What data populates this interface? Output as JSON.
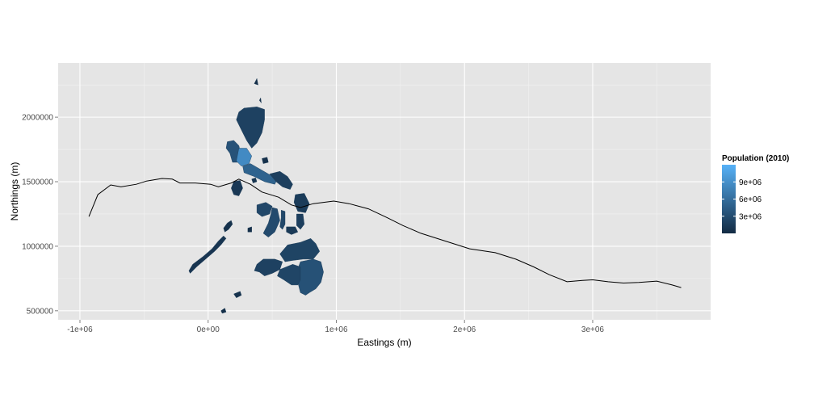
{
  "chart_data": {
    "type": "map",
    "title": "",
    "xlabel": "Eastings (m)",
    "ylabel": "Northings (m)",
    "xlim": [
      -1170000,
      3920000
    ],
    "ylim": [
      430000,
      2420000
    ],
    "grid": true,
    "x_ticks": [
      {
        "value": -1000000,
        "label": "-1e+06"
      },
      {
        "value": 0,
        "label": "0e+00"
      },
      {
        "value": 1000000,
        "label": "1e+06"
      },
      {
        "value": 2000000,
        "label": "2e+06"
      },
      {
        "value": 3000000,
        "label": "3e+06"
      }
    ],
    "y_ticks": [
      {
        "value": 500000,
        "label": "500000"
      },
      {
        "value": 1000000,
        "label": "1000000"
      },
      {
        "value": 1500000,
        "label": "1500000"
      },
      {
        "value": 2000000,
        "label": "2000000"
      }
    ],
    "line": {
      "color": "#000000",
      "points": [
        [
          -930000,
          1230000
        ],
        [
          -860000,
          1400000
        ],
        [
          -760000,
          1475000
        ],
        [
          -680000,
          1460000
        ],
        [
          -560000,
          1480000
        ],
        [
          -480000,
          1505000
        ],
        [
          -360000,
          1525000
        ],
        [
          -280000,
          1520000
        ],
        [
          -220000,
          1490000
        ],
        [
          -100000,
          1490000
        ],
        [
          20000,
          1480000
        ],
        [
          80000,
          1460000
        ],
        [
          180000,
          1490000
        ],
        [
          240000,
          1520000
        ],
        [
          330000,
          1480000
        ],
        [
          420000,
          1420000
        ],
        [
          550000,
          1380000
        ],
        [
          650000,
          1320000
        ],
        [
          720000,
          1300000
        ],
        [
          820000,
          1330000
        ],
        [
          980000,
          1350000
        ],
        [
          1100000,
          1330000
        ],
        [
          1250000,
          1290000
        ],
        [
          1400000,
          1220000
        ],
        [
          1520000,
          1160000
        ],
        [
          1660000,
          1100000
        ],
        [
          1850000,
          1040000
        ],
        [
          2040000,
          980000
        ],
        [
          2240000,
          950000
        ],
        [
          2400000,
          900000
        ],
        [
          2540000,
          840000
        ],
        [
          2660000,
          780000
        ],
        [
          2800000,
          725000
        ],
        [
          2920000,
          735000
        ],
        [
          3000000,
          740000
        ],
        [
          3120000,
          725000
        ],
        [
          3240000,
          715000
        ],
        [
          3360000,
          720000
        ],
        [
          3500000,
          730000
        ],
        [
          3620000,
          700000
        ],
        [
          3690000,
          680000
        ]
      ]
    },
    "regions": [
      {
        "id": "luzon-north",
        "pop": 2000000,
        "points": [
          [
            240000,
            2040000
          ],
          [
            280000,
            2070000
          ],
          [
            380000,
            2080000
          ],
          [
            440000,
            2060000
          ],
          [
            440000,
            1980000
          ],
          [
            420000,
            1880000
          ],
          [
            380000,
            1800000
          ],
          [
            340000,
            1760000
          ],
          [
            300000,
            1820000
          ],
          [
            260000,
            1900000
          ],
          [
            220000,
            1980000
          ]
        ]
      },
      {
        "id": "ilocos",
        "pop": 3500000,
        "points": [
          [
            150000,
            1810000
          ],
          [
            200000,
            1820000
          ],
          [
            240000,
            1780000
          ],
          [
            260000,
            1700000
          ],
          [
            230000,
            1650000
          ],
          [
            190000,
            1650000
          ],
          [
            170000,
            1720000
          ],
          [
            140000,
            1760000
          ]
        ]
      },
      {
        "id": "central-luzon",
        "pop": 8500000,
        "points": [
          [
            240000,
            1760000
          ],
          [
            300000,
            1760000
          ],
          [
            340000,
            1700000
          ],
          [
            320000,
            1640000
          ],
          [
            260000,
            1620000
          ],
          [
            220000,
            1660000
          ]
        ]
      },
      {
        "id": "calabarzon",
        "pop": 5000000,
        "points": [
          [
            270000,
            1620000
          ],
          [
            330000,
            1640000
          ],
          [
            400000,
            1600000
          ],
          [
            470000,
            1560000
          ],
          [
            540000,
            1520000
          ],
          [
            520000,
            1480000
          ],
          [
            440000,
            1500000
          ],
          [
            360000,
            1540000
          ],
          [
            280000,
            1570000
          ]
        ]
      },
      {
        "id": "bicol",
        "pop": 1800000,
        "points": [
          [
            480000,
            1560000
          ],
          [
            560000,
            1580000
          ],
          [
            620000,
            1540000
          ],
          [
            660000,
            1480000
          ],
          [
            640000,
            1440000
          ],
          [
            580000,
            1460000
          ],
          [
            530000,
            1500000
          ]
        ]
      },
      {
        "id": "mindoro",
        "pop": 1200000,
        "points": [
          [
            200000,
            1500000
          ],
          [
            250000,
            1510000
          ],
          [
            270000,
            1450000
          ],
          [
            240000,
            1390000
          ],
          [
            200000,
            1400000
          ],
          [
            180000,
            1450000
          ]
        ]
      },
      {
        "id": "palawan-a",
        "pop": 900000,
        "points": [
          [
            -150000,
            810000
          ],
          [
            -120000,
            860000
          ],
          [
            -40000,
            920000
          ],
          [
            30000,
            980000
          ],
          [
            80000,
            1040000
          ],
          [
            120000,
            1080000
          ],
          [
            140000,
            1060000
          ],
          [
            100000,
            1010000
          ],
          [
            50000,
            960000
          ],
          [
            -20000,
            900000
          ],
          [
            -90000,
            840000
          ],
          [
            -140000,
            790000
          ]
        ]
      },
      {
        "id": "palawan-b",
        "pop": 600000,
        "points": [
          [
            120000,
            1140000
          ],
          [
            150000,
            1180000
          ],
          [
            180000,
            1200000
          ],
          [
            190000,
            1170000
          ],
          [
            160000,
            1130000
          ],
          [
            130000,
            1110000
          ]
        ]
      },
      {
        "id": "panay",
        "pop": 2500000,
        "points": [
          [
            380000,
            1320000
          ],
          [
            450000,
            1340000
          ],
          [
            500000,
            1310000
          ],
          [
            480000,
            1250000
          ],
          [
            420000,
            1230000
          ],
          [
            380000,
            1260000
          ]
        ]
      },
      {
        "id": "negros",
        "pop": 2800000,
        "points": [
          [
            500000,
            1300000
          ],
          [
            540000,
            1290000
          ],
          [
            560000,
            1200000
          ],
          [
            520000,
            1110000
          ],
          [
            470000,
            1070000
          ],
          [
            430000,
            1100000
          ],
          [
            470000,
            1180000
          ],
          [
            490000,
            1250000
          ]
        ]
      },
      {
        "id": "cebu",
        "pop": 2600000,
        "points": [
          [
            570000,
            1280000
          ],
          [
            600000,
            1270000
          ],
          [
            600000,
            1170000
          ],
          [
            580000,
            1130000
          ],
          [
            560000,
            1150000
          ],
          [
            570000,
            1220000
          ]
        ]
      },
      {
        "id": "bohol",
        "pop": 1300000,
        "points": [
          [
            610000,
            1150000
          ],
          [
            680000,
            1150000
          ],
          [
            700000,
            1110000
          ],
          [
            650000,
            1090000
          ],
          [
            610000,
            1110000
          ]
        ]
      },
      {
        "id": "samar",
        "pop": 1500000,
        "points": [
          [
            680000,
            1400000
          ],
          [
            750000,
            1410000
          ],
          [
            790000,
            1330000
          ],
          [
            760000,
            1260000
          ],
          [
            700000,
            1270000
          ],
          [
            670000,
            1340000
          ]
        ]
      },
      {
        "id": "leyte",
        "pop": 1700000,
        "points": [
          [
            690000,
            1250000
          ],
          [
            740000,
            1250000
          ],
          [
            750000,
            1170000
          ],
          [
            720000,
            1130000
          ],
          [
            690000,
            1160000
          ]
        ]
      },
      {
        "id": "mindanao-north",
        "pop": 2200000,
        "points": [
          [
            560000,
            940000
          ],
          [
            620000,
            1010000
          ],
          [
            720000,
            1030000
          ],
          [
            800000,
            1060000
          ],
          [
            840000,
            1020000
          ],
          [
            870000,
            960000
          ],
          [
            820000,
            900000
          ],
          [
            740000,
            900000
          ],
          [
            660000,
            890000
          ],
          [
            600000,
            880000
          ]
        ]
      },
      {
        "id": "zamboanga",
        "pop": 2000000,
        "points": [
          [
            380000,
            860000
          ],
          [
            430000,
            900000
          ],
          [
            520000,
            900000
          ],
          [
            580000,
            880000
          ],
          [
            560000,
            820000
          ],
          [
            500000,
            790000
          ],
          [
            440000,
            770000
          ],
          [
            400000,
            800000
          ],
          [
            360000,
            810000
          ]
        ]
      },
      {
        "id": "davao",
        "pop": 3400000,
        "points": [
          [
            720000,
            880000
          ],
          [
            820000,
            900000
          ],
          [
            880000,
            880000
          ],
          [
            900000,
            800000
          ],
          [
            880000,
            720000
          ],
          [
            840000,
            670000
          ],
          [
            790000,
            640000
          ],
          [
            760000,
            620000
          ],
          [
            720000,
            640000
          ],
          [
            700000,
            720000
          ],
          [
            690000,
            800000
          ]
        ]
      },
      {
        "id": "cotabato",
        "pop": 2300000,
        "points": [
          [
            560000,
            820000
          ],
          [
            660000,
            860000
          ],
          [
            720000,
            840000
          ],
          [
            720000,
            740000
          ],
          [
            700000,
            700000
          ],
          [
            650000,
            700000
          ],
          [
            590000,
            740000
          ],
          [
            540000,
            770000
          ]
        ]
      },
      {
        "id": "sulu",
        "pop": 700000,
        "points": [
          [
            200000,
            630000
          ],
          [
            250000,
            650000
          ],
          [
            260000,
            620000
          ],
          [
            220000,
            600000
          ]
        ]
      }
    ],
    "islets": [
      {
        "pop": 300000,
        "points": [
          [
            360000,
            2260000
          ],
          [
            380000,
            2300000
          ],
          [
            390000,
            2250000
          ]
        ]
      },
      {
        "pop": 300000,
        "points": [
          [
            400000,
            2130000
          ],
          [
            410000,
            2150000
          ],
          [
            415000,
            2110000
          ]
        ]
      },
      {
        "pop": 500000,
        "points": [
          [
            420000,
            1680000
          ],
          [
            460000,
            1690000
          ],
          [
            470000,
            1650000
          ],
          [
            430000,
            1640000
          ]
        ]
      },
      {
        "pop": 800000,
        "points": [
          [
            340000,
            1520000
          ],
          [
            370000,
            1530000
          ],
          [
            380000,
            1500000
          ],
          [
            350000,
            1490000
          ]
        ]
      },
      {
        "pop": 400000,
        "points": [
          [
            100000,
            500000
          ],
          [
            130000,
            520000
          ],
          [
            140000,
            490000
          ],
          [
            110000,
            480000
          ]
        ]
      },
      {
        "pop": 400000,
        "points": [
          [
            310000,
            1140000
          ],
          [
            340000,
            1150000
          ],
          [
            340000,
            1110000
          ],
          [
            310000,
            1110000
          ]
        ]
      }
    ],
    "legend": {
      "title": "Population (2010)",
      "position": "right",
      "min": 0,
      "max": 12000000,
      "color_low": "#132B43",
      "color_high": "#56B1F7",
      "breaks": [
        {
          "value": 3000000,
          "label": "3e+06"
        },
        {
          "value": 6000000,
          "label": "6e+06"
        },
        {
          "value": 9000000,
          "label": "9e+06"
        }
      ]
    }
  }
}
